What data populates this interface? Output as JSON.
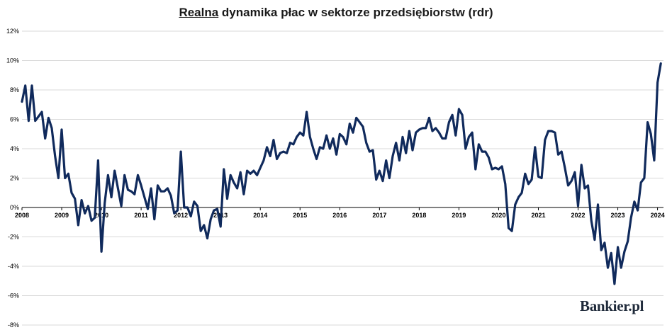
{
  "chart_data": {
    "type": "line",
    "title_underlined": "Realna",
    "title_rest": " dynamika płac w sektorze przedsiębiorstw (rdr)",
    "brand": "Bankier.pl",
    "ylim": [
      -8,
      12
    ],
    "y_ticks": [
      "-8%",
      "-6%",
      "-4%",
      "-2%",
      "0%",
      "2%",
      "4%",
      "6%",
      "8%",
      "10%",
      "12%"
    ],
    "y_tick_values": [
      -8,
      -6,
      -4,
      -2,
      0,
      2,
      4,
      6,
      8,
      10,
      12
    ],
    "x_ticks": [
      "2008",
      "2009",
      "2010",
      "2011",
      "2012",
      "2013",
      "2014",
      "2015",
      "2016",
      "2017",
      "2018",
      "2019",
      "2020",
      "2021",
      "2022",
      "2023",
      "2024"
    ],
    "x_tick_values": [
      2008,
      2009,
      2010,
      2011,
      2012,
      2013,
      2014,
      2015,
      2016,
      2017,
      2018,
      2019,
      2020,
      2021,
      2022,
      2023,
      2024
    ],
    "xlim": [
      2008,
      2024.15
    ],
    "grid": true,
    "color": "#102a5c",
    "series": [
      {
        "x": [
          2008.0,
          2008.083,
          2008.167,
          2008.25,
          2008.333,
          2008.417,
          2008.5,
          2008.583,
          2008.667,
          2008.75,
          2008.833,
          2008.917,
          2009.0,
          2009.083,
          2009.167,
          2009.25,
          2009.333,
          2009.417,
          2009.5,
          2009.583,
          2009.667,
          2009.75,
          2009.833,
          2009.917,
          2010.0,
          2010.083,
          2010.167,
          2010.25,
          2010.333,
          2010.417,
          2010.5,
          2010.583,
          2010.667,
          2010.75,
          2010.833,
          2010.917,
          2011.0,
          2011.083,
          2011.167,
          2011.25,
          2011.333,
          2011.417,
          2011.5,
          2011.583,
          2011.667,
          2011.75,
          2011.833,
          2011.917,
          2012.0,
          2012.083,
          2012.167,
          2012.25,
          2012.333,
          2012.417,
          2012.5,
          2012.583,
          2012.667,
          2012.75,
          2012.833,
          2012.917,
          2013.0,
          2013.083,
          2013.167,
          2013.25,
          2013.333,
          2013.417,
          2013.5,
          2013.583,
          2013.667,
          2013.75,
          2013.833,
          2013.917,
          2014.0,
          2014.083,
          2014.167,
          2014.25,
          2014.333,
          2014.417,
          2014.5,
          2014.583,
          2014.667,
          2014.75,
          2014.833,
          2014.917,
          2015.0,
          2015.083,
          2015.167,
          2015.25,
          2015.333,
          2015.417,
          2015.5,
          2015.583,
          2015.667,
          2015.75,
          2015.833,
          2015.917,
          2016.0,
          2016.083,
          2016.167,
          2016.25,
          2016.333,
          2016.417,
          2016.5,
          2016.583,
          2016.667,
          2016.75,
          2016.833,
          2016.917,
          2017.0,
          2017.083,
          2017.167,
          2017.25,
          2017.333,
          2017.417,
          2017.5,
          2017.583,
          2017.667,
          2017.75,
          2017.833,
          2017.917,
          2018.0,
          2018.083,
          2018.167,
          2018.25,
          2018.333,
          2018.417,
          2018.5,
          2018.583,
          2018.667,
          2018.75,
          2018.833,
          2018.917,
          2019.0,
          2019.083,
          2019.167,
          2019.25,
          2019.333,
          2019.417,
          2019.5,
          2019.583,
          2019.667,
          2019.75,
          2019.833,
          2019.917,
          2020.0,
          2020.083,
          2020.167,
          2020.25,
          2020.333,
          2020.417,
          2020.5,
          2020.583,
          2020.667,
          2020.75,
          2020.833,
          2020.917,
          2021.0,
          2021.083,
          2021.167,
          2021.25,
          2021.333,
          2021.417,
          2021.5,
          2021.583,
          2021.667,
          2021.75,
          2021.833,
          2021.917,
          2022.0,
          2022.083,
          2022.167,
          2022.25,
          2022.333,
          2022.417,
          2022.5,
          2022.583,
          2022.667,
          2022.75,
          2022.833,
          2022.917,
          2023.0,
          2023.083,
          2023.167,
          2023.25,
          2023.333,
          2023.417,
          2023.5,
          2023.583,
          2023.667,
          2023.75,
          2023.833,
          2023.917,
          2024.0,
          2024.083
        ],
        "y": [
          7.2,
          8.3,
          5.9,
          8.3,
          5.9,
          6.2,
          6.5,
          4.7,
          6.1,
          5.4,
          3.5,
          2.0,
          5.3,
          2.0,
          2.3,
          1.0,
          0.6,
          -1.2,
          0.5,
          -0.4,
          0.1,
          -0.9,
          -0.7,
          3.2,
          -3.0,
          0.3,
          2.2,
          0.7,
          2.5,
          1.3,
          0.1,
          2.2,
          1.2,
          1.1,
          0.9,
          2.2,
          1.5,
          0.7,
          -0.1,
          1.3,
          -0.8,
          1.5,
          1.1,
          1.1,
          1.3,
          0.8,
          -0.4,
          -0.2,
          3.8,
          0.0,
          0.0,
          -0.6,
          0.4,
          0.1,
          -1.6,
          -1.2,
          -2.1,
          -0.8,
          -0.2,
          -0.1,
          -1.3,
          2.6,
          0.6,
          2.2,
          1.7,
          1.3,
          2.4,
          0.9,
          2.5,
          2.3,
          2.5,
          2.2,
          2.7,
          3.2,
          4.1,
          3.5,
          4.6,
          3.3,
          3.7,
          3.8,
          3.7,
          4.4,
          4.3,
          4.8,
          5.1,
          4.9,
          6.5,
          4.8,
          4.0,
          3.3,
          4.1,
          4.0,
          4.9,
          4.0,
          4.7,
          3.6,
          5.0,
          4.8,
          4.3,
          5.7,
          5.1,
          6.1,
          5.8,
          5.5,
          4.4,
          3.8,
          3.9,
          1.9,
          2.5,
          1.8,
          3.2,
          2.0,
          3.5,
          4.4,
          3.2,
          4.8,
          3.7,
          5.2,
          3.9,
          5.1,
          5.3,
          5.4,
          5.4,
          6.1,
          5.2,
          5.4,
          5.1,
          4.7,
          4.7,
          5.8,
          6.3,
          4.9,
          6.7,
          6.3,
          4.0,
          4.8,
          5.1,
          2.6,
          4.3,
          3.8,
          3.8,
          3.4,
          2.6,
          2.7,
          2.6,
          2.8,
          1.6,
          -1.4,
          -1.6,
          0.2,
          0.7,
          1.0,
          2.3,
          1.6,
          1.9,
          4.1,
          2.1,
          2.0,
          4.6,
          5.2,
          5.2,
          5.1,
          3.6,
          3.8,
          2.7,
          1.5,
          1.8,
          2.4,
          0.1,
          2.9,
          1.3,
          1.5,
          -0.9,
          -2.2,
          0.2,
          -2.9,
          -2.4,
          -4.1,
          -3.1,
          -5.2,
          -2.7,
          -4.1,
          -3.0,
          -2.3,
          -0.7,
          0.4,
          -0.2,
          1.7,
          2.0,
          5.8,
          5.0,
          3.2,
          8.5,
          9.8
        ]
      }
    ]
  }
}
